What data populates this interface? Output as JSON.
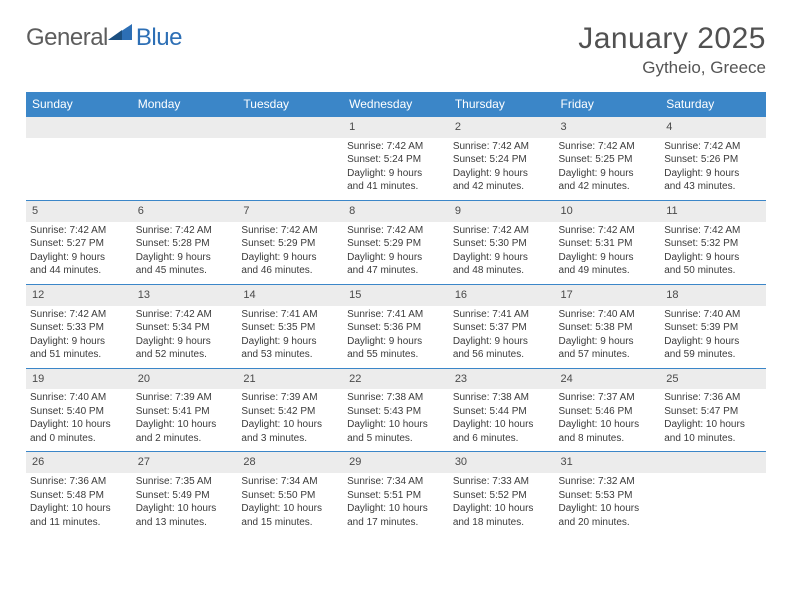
{
  "brand": {
    "name1": "General",
    "name2": "Blue"
  },
  "title": "January 2025",
  "location": "Gytheio, Greece",
  "colors": {
    "accent": "#3b86c8",
    "daybg": "#ececec",
    "text": "#3b3b3b"
  },
  "weekdays": [
    "Sunday",
    "Monday",
    "Tuesday",
    "Wednesday",
    "Thursday",
    "Friday",
    "Saturday"
  ],
  "weeks": [
    [
      null,
      null,
      null,
      {
        "n": "1",
        "sr": "7:42 AM",
        "ss": "5:24 PM",
        "dl": "9 hours",
        "dm": "and 41 minutes."
      },
      {
        "n": "2",
        "sr": "7:42 AM",
        "ss": "5:24 PM",
        "dl": "9 hours",
        "dm": "and 42 minutes."
      },
      {
        "n": "3",
        "sr": "7:42 AM",
        "ss": "5:25 PM",
        "dl": "9 hours",
        "dm": "and 42 minutes."
      },
      {
        "n": "4",
        "sr": "7:42 AM",
        "ss": "5:26 PM",
        "dl": "9 hours",
        "dm": "and 43 minutes."
      }
    ],
    [
      {
        "n": "5",
        "sr": "7:42 AM",
        "ss": "5:27 PM",
        "dl": "9 hours",
        "dm": "and 44 minutes."
      },
      {
        "n": "6",
        "sr": "7:42 AM",
        "ss": "5:28 PM",
        "dl": "9 hours",
        "dm": "and 45 minutes."
      },
      {
        "n": "7",
        "sr": "7:42 AM",
        "ss": "5:29 PM",
        "dl": "9 hours",
        "dm": "and 46 minutes."
      },
      {
        "n": "8",
        "sr": "7:42 AM",
        "ss": "5:29 PM",
        "dl": "9 hours",
        "dm": "and 47 minutes."
      },
      {
        "n": "9",
        "sr": "7:42 AM",
        "ss": "5:30 PM",
        "dl": "9 hours",
        "dm": "and 48 minutes."
      },
      {
        "n": "10",
        "sr": "7:42 AM",
        "ss": "5:31 PM",
        "dl": "9 hours",
        "dm": "and 49 minutes."
      },
      {
        "n": "11",
        "sr": "7:42 AM",
        "ss": "5:32 PM",
        "dl": "9 hours",
        "dm": "and 50 minutes."
      }
    ],
    [
      {
        "n": "12",
        "sr": "7:42 AM",
        "ss": "5:33 PM",
        "dl": "9 hours",
        "dm": "and 51 minutes."
      },
      {
        "n": "13",
        "sr": "7:42 AM",
        "ss": "5:34 PM",
        "dl": "9 hours",
        "dm": "and 52 minutes."
      },
      {
        "n": "14",
        "sr": "7:41 AM",
        "ss": "5:35 PM",
        "dl": "9 hours",
        "dm": "and 53 minutes."
      },
      {
        "n": "15",
        "sr": "7:41 AM",
        "ss": "5:36 PM",
        "dl": "9 hours",
        "dm": "and 55 minutes."
      },
      {
        "n": "16",
        "sr": "7:41 AM",
        "ss": "5:37 PM",
        "dl": "9 hours",
        "dm": "and 56 minutes."
      },
      {
        "n": "17",
        "sr": "7:40 AM",
        "ss": "5:38 PM",
        "dl": "9 hours",
        "dm": "and 57 minutes."
      },
      {
        "n": "18",
        "sr": "7:40 AM",
        "ss": "5:39 PM",
        "dl": "9 hours",
        "dm": "and 59 minutes."
      }
    ],
    [
      {
        "n": "19",
        "sr": "7:40 AM",
        "ss": "5:40 PM",
        "dl": "10 hours",
        "dm": "and 0 minutes."
      },
      {
        "n": "20",
        "sr": "7:39 AM",
        "ss": "5:41 PM",
        "dl": "10 hours",
        "dm": "and 2 minutes."
      },
      {
        "n": "21",
        "sr": "7:39 AM",
        "ss": "5:42 PM",
        "dl": "10 hours",
        "dm": "and 3 minutes."
      },
      {
        "n": "22",
        "sr": "7:38 AM",
        "ss": "5:43 PM",
        "dl": "10 hours",
        "dm": "and 5 minutes."
      },
      {
        "n": "23",
        "sr": "7:38 AM",
        "ss": "5:44 PM",
        "dl": "10 hours",
        "dm": "and 6 minutes."
      },
      {
        "n": "24",
        "sr": "7:37 AM",
        "ss": "5:46 PM",
        "dl": "10 hours",
        "dm": "and 8 minutes."
      },
      {
        "n": "25",
        "sr": "7:36 AM",
        "ss": "5:47 PM",
        "dl": "10 hours",
        "dm": "and 10 minutes."
      }
    ],
    [
      {
        "n": "26",
        "sr": "7:36 AM",
        "ss": "5:48 PM",
        "dl": "10 hours",
        "dm": "and 11 minutes."
      },
      {
        "n": "27",
        "sr": "7:35 AM",
        "ss": "5:49 PM",
        "dl": "10 hours",
        "dm": "and 13 minutes."
      },
      {
        "n": "28",
        "sr": "7:34 AM",
        "ss": "5:50 PM",
        "dl": "10 hours",
        "dm": "and 15 minutes."
      },
      {
        "n": "29",
        "sr": "7:34 AM",
        "ss": "5:51 PM",
        "dl": "10 hours",
        "dm": "and 17 minutes."
      },
      {
        "n": "30",
        "sr": "7:33 AM",
        "ss": "5:52 PM",
        "dl": "10 hours",
        "dm": "and 18 minutes."
      },
      {
        "n": "31",
        "sr": "7:32 AM",
        "ss": "5:53 PM",
        "dl": "10 hours",
        "dm": "and 20 minutes."
      },
      null
    ]
  ],
  "labels": {
    "sunrise": "Sunrise: ",
    "sunset": "Sunset: ",
    "daylight": "Daylight: "
  }
}
